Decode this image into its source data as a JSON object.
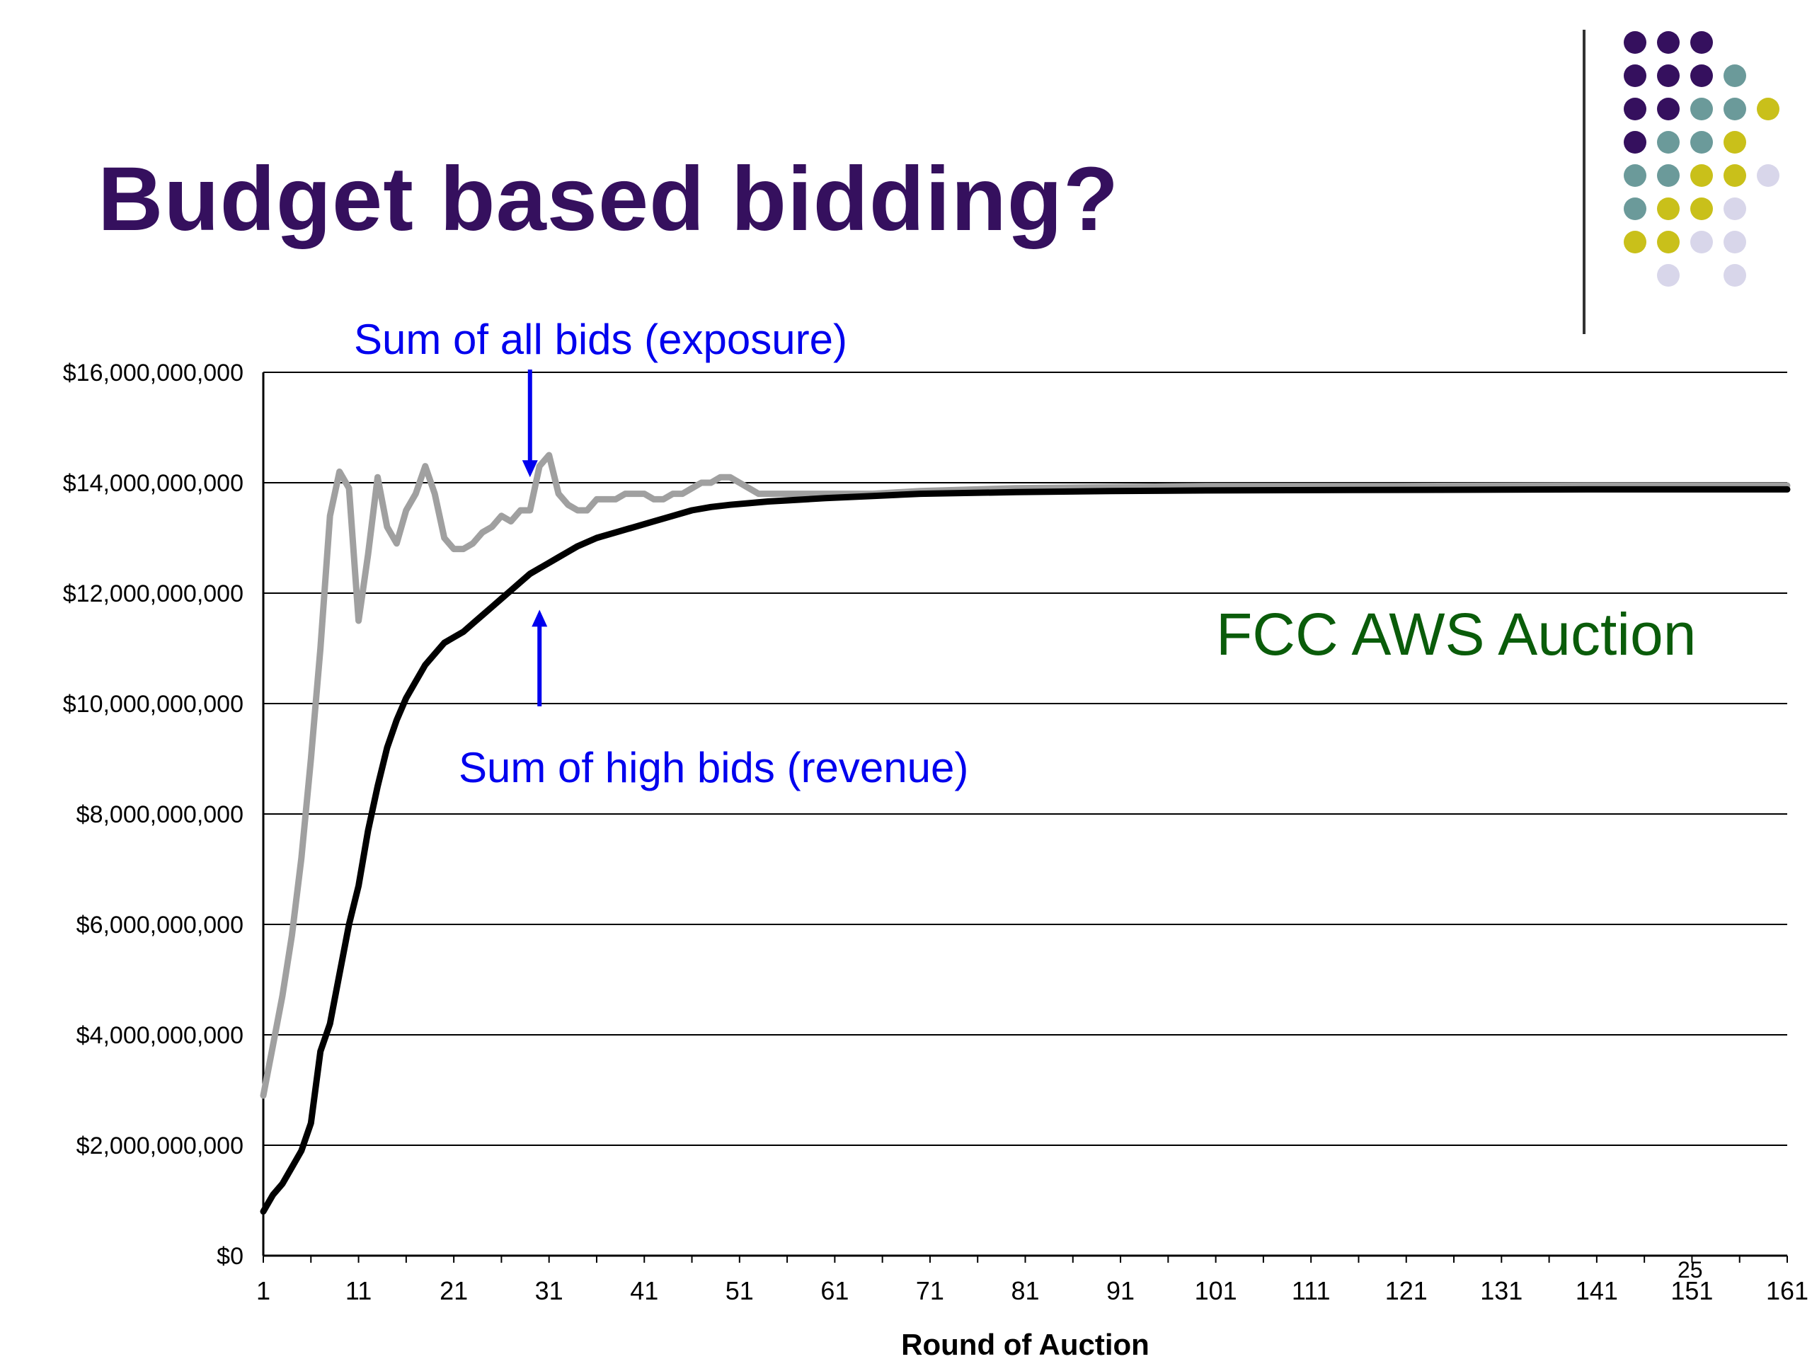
{
  "slide": {
    "title": "Budget based bidding?",
    "page_number": "25"
  },
  "decoration": {
    "dot_colors": {
      "purple": "#35105e",
      "teal": "#6b9a9a",
      "yellow": "#c9c01a",
      "lavender": "#d8d6ea"
    },
    "dot_rows": [
      [
        "purple",
        "purple",
        "purple",
        "",
        ""
      ],
      [
        "purple",
        "purple",
        "purple",
        "teal",
        ""
      ],
      [
        "purple",
        "purple",
        "teal",
        "teal",
        "yellow"
      ],
      [
        "purple",
        "teal",
        "teal",
        "yellow",
        ""
      ],
      [
        "teal",
        "teal",
        "yellow",
        "yellow",
        "lavender"
      ],
      [
        "teal",
        "yellow",
        "yellow",
        "lavender",
        ""
      ],
      [
        "yellow",
        "yellow",
        "lavender",
        "lavender",
        ""
      ],
      [
        "",
        "lavender",
        "",
        "lavender",
        ""
      ]
    ]
  },
  "chart_data": {
    "type": "line",
    "title": "",
    "xlabel": "Round of Auction",
    "ylabel": "",
    "xlim": [
      1,
      161
    ],
    "ylim": [
      0,
      16000000000
    ],
    "x_ticks": [
      "1",
      "11",
      "21",
      "31",
      "41",
      "51",
      "61",
      "71",
      "81",
      "91",
      "101",
      "111",
      "121",
      "131",
      "141",
      "151",
      "161"
    ],
    "y_ticks": [
      "$0",
      "$2,000,000,000",
      "$4,000,000,000",
      "$6,000,000,000",
      "$8,000,000,000",
      "$10,000,000,000",
      "$12,000,000,000",
      "$14,000,000,000",
      "$16,000,000,000"
    ],
    "grid": true,
    "colors": {
      "exposure": "#a0a0a0",
      "revenue": "#000000",
      "annotation": "#0000ee",
      "label": "#0a5c0a"
    },
    "series": [
      {
        "key": "exposure",
        "x": [
          1,
          2,
          3,
          4,
          5,
          6,
          7,
          8,
          9,
          10,
          11,
          12,
          13,
          14,
          15,
          16,
          17,
          18,
          19,
          20,
          21,
          22,
          23,
          24,
          25,
          26,
          27,
          28,
          29,
          30,
          31,
          32,
          33,
          34,
          35,
          36,
          37,
          38,
          39,
          40,
          41,
          42,
          43,
          44,
          45,
          46,
          47,
          48,
          49,
          50,
          51,
          52,
          53,
          54,
          55,
          56,
          58,
          60,
          65,
          70,
          80,
          90,
          100,
          120,
          140,
          161
        ],
        "values": [
          2900000000,
          3800000000,
          4700000000,
          5800000000,
          7200000000,
          9000000000,
          11000000000,
          13400000000,
          14200000000,
          13900000000,
          11500000000,
          12700000000,
          14100000000,
          13200000000,
          12900000000,
          13500000000,
          13800000000,
          14300000000,
          13800000000,
          13000000000,
          12800000000,
          12800000000,
          12900000000,
          13100000000,
          13200000000,
          13400000000,
          13300000000,
          13500000000,
          13500000000,
          14300000000,
          14500000000,
          13800000000,
          13600000000,
          13500000000,
          13500000000,
          13700000000,
          13700000000,
          13700000000,
          13800000000,
          13800000000,
          13800000000,
          13700000000,
          13700000000,
          13800000000,
          13800000000,
          13900000000,
          14000000000,
          14000000000,
          14100000000,
          14100000000,
          14000000000,
          13900000000,
          13800000000,
          13800000000,
          13800000000,
          13800000000,
          13800000000,
          13800000000,
          13800000000,
          13850000000,
          13900000000,
          13920000000,
          13940000000,
          13940000000,
          13950000000,
          13950000000
        ]
      },
      {
        "key": "revenue",
        "x": [
          1,
          2,
          3,
          4,
          5,
          6,
          7,
          8,
          9,
          10,
          11,
          12,
          13,
          14,
          15,
          16,
          17,
          18,
          19,
          20,
          21,
          22,
          23,
          24,
          25,
          26,
          27,
          28,
          29,
          30,
          31,
          32,
          33,
          34,
          36,
          38,
          40,
          42,
          44,
          46,
          48,
          50,
          52,
          54,
          56,
          60,
          65,
          70,
          80,
          90,
          100,
          120,
          140,
          161
        ],
        "values": [
          800000000,
          1100000000,
          1300000000,
          1600000000,
          1900000000,
          2400000000,
          3700000000,
          4200000000,
          5100000000,
          6000000000,
          6700000000,
          7700000000,
          8500000000,
          9200000000,
          9700000000,
          10100000000,
          10400000000,
          10700000000,
          10900000000,
          11100000000,
          11200000000,
          11300000000,
          11450000000,
          11600000000,
          11750000000,
          11900000000,
          12050000000,
          12200000000,
          12350000000,
          12450000000,
          12550000000,
          12650000000,
          12750000000,
          12850000000,
          13000000000,
          13100000000,
          13200000000,
          13300000000,
          13400000000,
          13500000000,
          13560000000,
          13600000000,
          13630000000,
          13660000000,
          13680000000,
          13720000000,
          13760000000,
          13800000000,
          13830000000,
          13850000000,
          13860000000,
          13870000000,
          13880000000,
          13880000000
        ]
      }
    ],
    "annotations": [
      {
        "key": "exposure-label",
        "text": "Sum of all bids (exposure)",
        "arrow_to": [
          29,
          14100000000
        ],
        "arrow_from": [
          29,
          16050000000
        ]
      },
      {
        "key": "revenue-label",
        "text": "Sum of high bids (revenue)",
        "arrow_to": [
          30,
          11700000000
        ],
        "arrow_from": [
          30,
          9950000000
        ]
      },
      {
        "key": "auction-label",
        "text": "FCC AWS Auction"
      }
    ]
  }
}
